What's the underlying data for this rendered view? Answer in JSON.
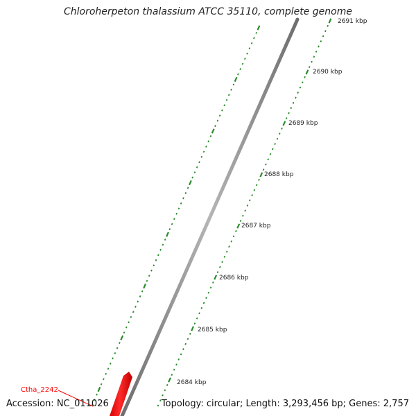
{
  "title": "Chloroherpeton thalassium ATCC 35110, complete genome",
  "accession_text": "Accession: NC_011026",
  "stats_text": "Topology: circular; Length: 3,293,456 bp; Genes: 2,757",
  "ruler_labels": [
    "2684 kbp",
    "2685 kbp",
    "2686 kbp",
    "2687 kbp",
    "2688 kbp",
    "2689 kbp",
    "2690 kbp",
    "2691 kbp"
  ],
  "genes": [
    {
      "name": "Ctha_2242",
      "strand": "forward"
    }
  ],
  "colors": {
    "tick": "#2a8a2a",
    "gene": "#ff0000",
    "backbone": "#8c8c8c"
  }
}
